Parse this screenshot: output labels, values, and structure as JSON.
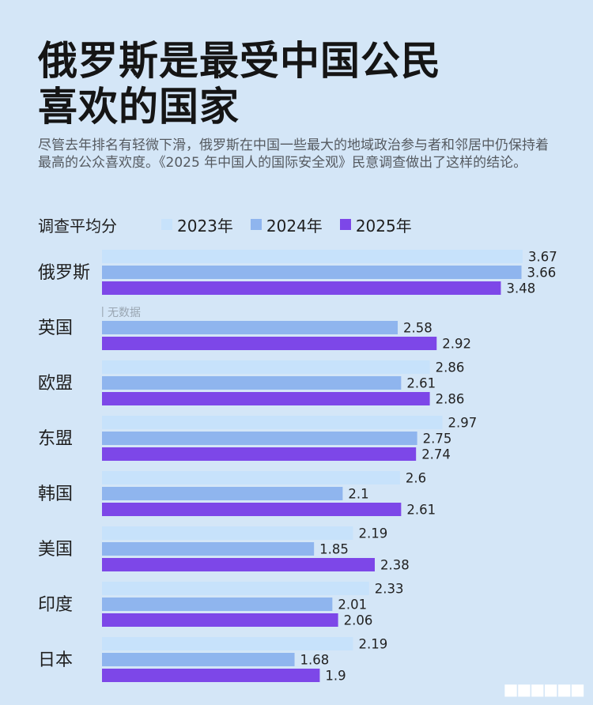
{
  "title_line1": "俄罗斯是最受中国公民",
  "title_line2": "喜欢的国家",
  "subtitle": "尽管去年排名有轻微下滑，俄罗斯在中国一些最大的地域政治参与者和邻居中仍保持着最高的公众喜欢度。《2025 年中国人的国际安全观》民意调查做出了这样的结论。",
  "colors": {
    "background": "#d4e6f7",
    "series_2023": "#c7e2fb",
    "series_2024": "#8fb5ee",
    "series_2025": "#7d47e8"
  },
  "more_icon": "more-dots-icon",
  "chart_data": {
    "type": "bar",
    "orientation": "horizontal",
    "ylabel": "调查平均分",
    "categories": [
      "俄罗斯",
      "英国",
      "欧盟",
      "东盟",
      "韩国",
      "美国",
      "印度",
      "日本"
    ],
    "series": [
      {
        "name": "2023年",
        "values": [
          3.67,
          null,
          2.86,
          2.97,
          2.6,
          2.19,
          2.33,
          2.19
        ],
        "labels": [
          "3.67",
          "",
          "2.86",
          "2.97",
          "2.6",
          "2.19",
          "2.33",
          "2.19"
        ]
      },
      {
        "name": "2024年",
        "values": [
          3.66,
          2.58,
          2.61,
          2.75,
          2.1,
          1.85,
          2.01,
          1.68
        ],
        "labels": [
          "3.66",
          "2.58",
          "2.61",
          "2.75",
          "2.1",
          "1.85",
          "2.01",
          "1.68"
        ]
      },
      {
        "name": "2025年",
        "values": [
          3.48,
          2.92,
          2.86,
          2.74,
          2.61,
          2.38,
          2.06,
          1.9
        ],
        "labels": [
          "3.48",
          "2.92",
          "2.86",
          "2.74",
          "2.61",
          "2.38",
          "2.06",
          "1.9"
        ]
      }
    ],
    "no_data_label": "无数据",
    "xlim": [
      0,
      3.67
    ],
    "grid": false,
    "legend": "top"
  }
}
